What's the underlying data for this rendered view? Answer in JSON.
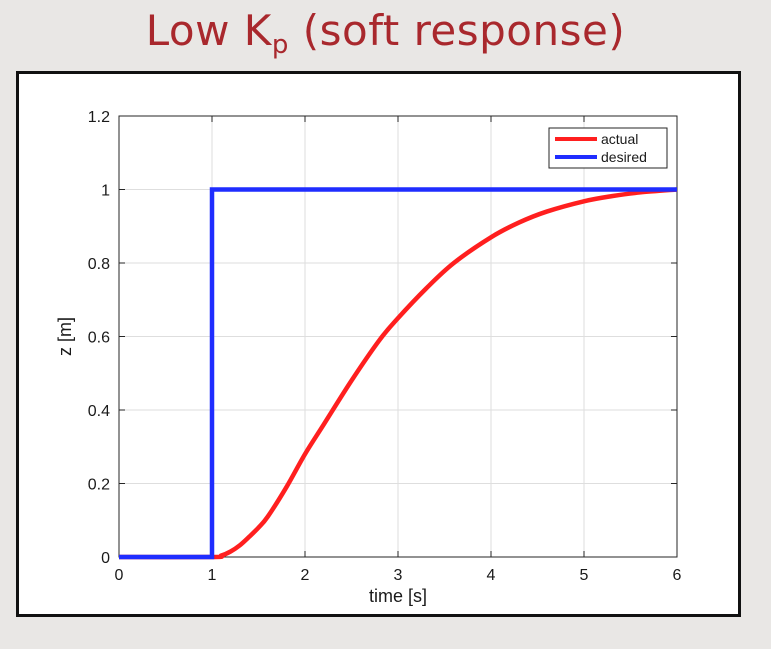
{
  "slide": {
    "title_main": "Low K",
    "title_sub": "p",
    "title_suffix": " (soft response)"
  },
  "colors": {
    "title": "#a9282d",
    "actual": "#ff1f1f",
    "desired": "#1f2dff",
    "grid": "#dedede",
    "axes": "#262626"
  },
  "chart_data": {
    "type": "line",
    "xlabel": "time [s]",
    "ylabel": "z [m]",
    "xlim": [
      0,
      6
    ],
    "ylim": [
      0,
      1.2
    ],
    "xticks": [
      0,
      1,
      2,
      3,
      4,
      5,
      6
    ],
    "yticks": [
      0,
      0.2,
      0.4,
      0.6,
      0.8,
      1,
      1.2
    ],
    "xtick_labels": [
      "0",
      "1",
      "2",
      "3",
      "4",
      "5",
      "6"
    ],
    "ytick_labels": [
      "0",
      "0.2",
      "0.4",
      "0.6",
      "0.8",
      "1",
      "1.2"
    ],
    "grid": true,
    "legend_position": "top-right",
    "series": [
      {
        "name": "actual",
        "color": "#ff1f1f",
        "x": [
          0,
          1,
          1.1,
          1.2,
          1.3,
          1.4,
          1.5,
          1.6,
          1.8,
          2.0,
          2.2,
          2.5,
          2.8,
          3.0,
          3.3,
          3.6,
          4.0,
          4.3,
          4.6,
          5.0,
          5.3,
          5.6,
          6.0
        ],
        "y": [
          0,
          0,
          0.004,
          0.015,
          0.032,
          0.055,
          0.08,
          0.11,
          0.19,
          0.28,
          0.36,
          0.48,
          0.59,
          0.65,
          0.73,
          0.8,
          0.87,
          0.91,
          0.94,
          0.968,
          0.982,
          0.992,
          1.0
        ]
      },
      {
        "name": "desired",
        "color": "#1f2dff",
        "x": [
          0,
          1,
          1,
          6
        ],
        "y": [
          0,
          0,
          1,
          1
        ]
      }
    ]
  }
}
